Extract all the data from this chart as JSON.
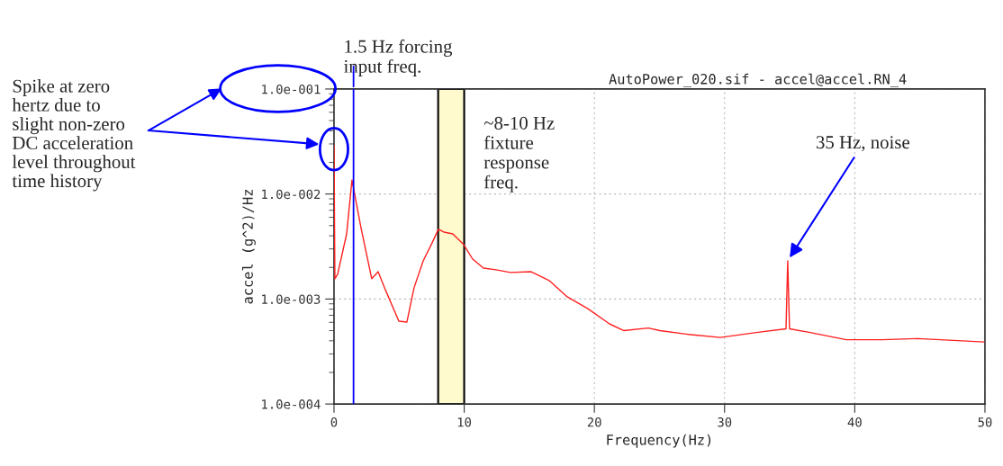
{
  "chart_data": {
    "type": "line",
    "title": "AutoPower_020.sif - accel@accel.RN_4",
    "xlabel": "Frequency(Hz)",
    "ylabel": "accel (g^2)/Hz",
    "log": "y",
    "grid": true,
    "marker": "none",
    "line_style": "solid",
    "xlim": [
      0,
      50
    ],
    "xticks": [
      0,
      10,
      20,
      30,
      40,
      50
    ],
    "ylim": [
      0.0001,
      0.1
    ],
    "yticks": [
      {
        "value": 0.0001,
        "label": "1.0e-004"
      },
      {
        "value": 0.001,
        "label": "1.0e-003"
      },
      {
        "value": 0.01,
        "label": "1.0e-002"
      },
      {
        "value": 0.1,
        "label": "1.0e-001"
      }
    ],
    "series": [
      {
        "color": "#ff2020",
        "x": [
          0,
          0.07,
          0.28,
          0.97,
          1.38,
          2.07,
          2.9,
          3.39,
          3.94,
          4.98,
          5.6,
          6.15,
          6.85,
          7.54,
          8.02,
          8.44,
          9.13,
          9.96,
          10.65,
          11.48,
          12.45,
          13.55,
          15.15,
          16.53,
          17.91,
          19.5,
          21.16,
          22.27,
          24.14,
          25.03,
          27.25,
          29.67,
          32.43,
          34.72,
          34.85,
          34.99,
          36.58,
          39.35,
          42.12,
          44.88,
          49.93
        ],
        "values": [
          0.029,
          0.00156,
          0.00172,
          0.00417,
          0.0136,
          0.00479,
          0.00156,
          0.00182,
          0.00123,
          0.000615,
          0.000604,
          0.00128,
          0.00231,
          0.00343,
          0.00461,
          0.00434,
          0.00417,
          0.0033,
          0.0024,
          0.00197,
          0.0019,
          0.00179,
          0.00182,
          0.0015,
          0.00105,
          0.00081,
          0.00058,
          0.0005,
          0.00053,
          0.0005,
          0.00046,
          0.00043,
          0.00048,
          0.00052,
          0.00231,
          0.00052,
          0.00048,
          0.00041,
          0.00041,
          0.00042,
          0.00039
        ]
      }
    ],
    "ref_lines": [
      {
        "axis": "x",
        "value": 1.5,
        "label": "1.5 Hz forcing\ninput freq.",
        "color": "#0000ff"
      }
    ],
    "bands": [
      {
        "axis": "x",
        "from": 8,
        "to": 10,
        "label": "~8-10 Hz\nfixture\nresponse\nfreq.",
        "color": "#fffacd"
      }
    ],
    "annotations": [
      {
        "text": "35 Hz, noise",
        "x": 34.85,
        "y": 0.00231
      },
      "Spike at zero\nhertz due to\nslight non-zero\nDC acceleration\nlevel throughout\ntime history"
    ]
  }
}
